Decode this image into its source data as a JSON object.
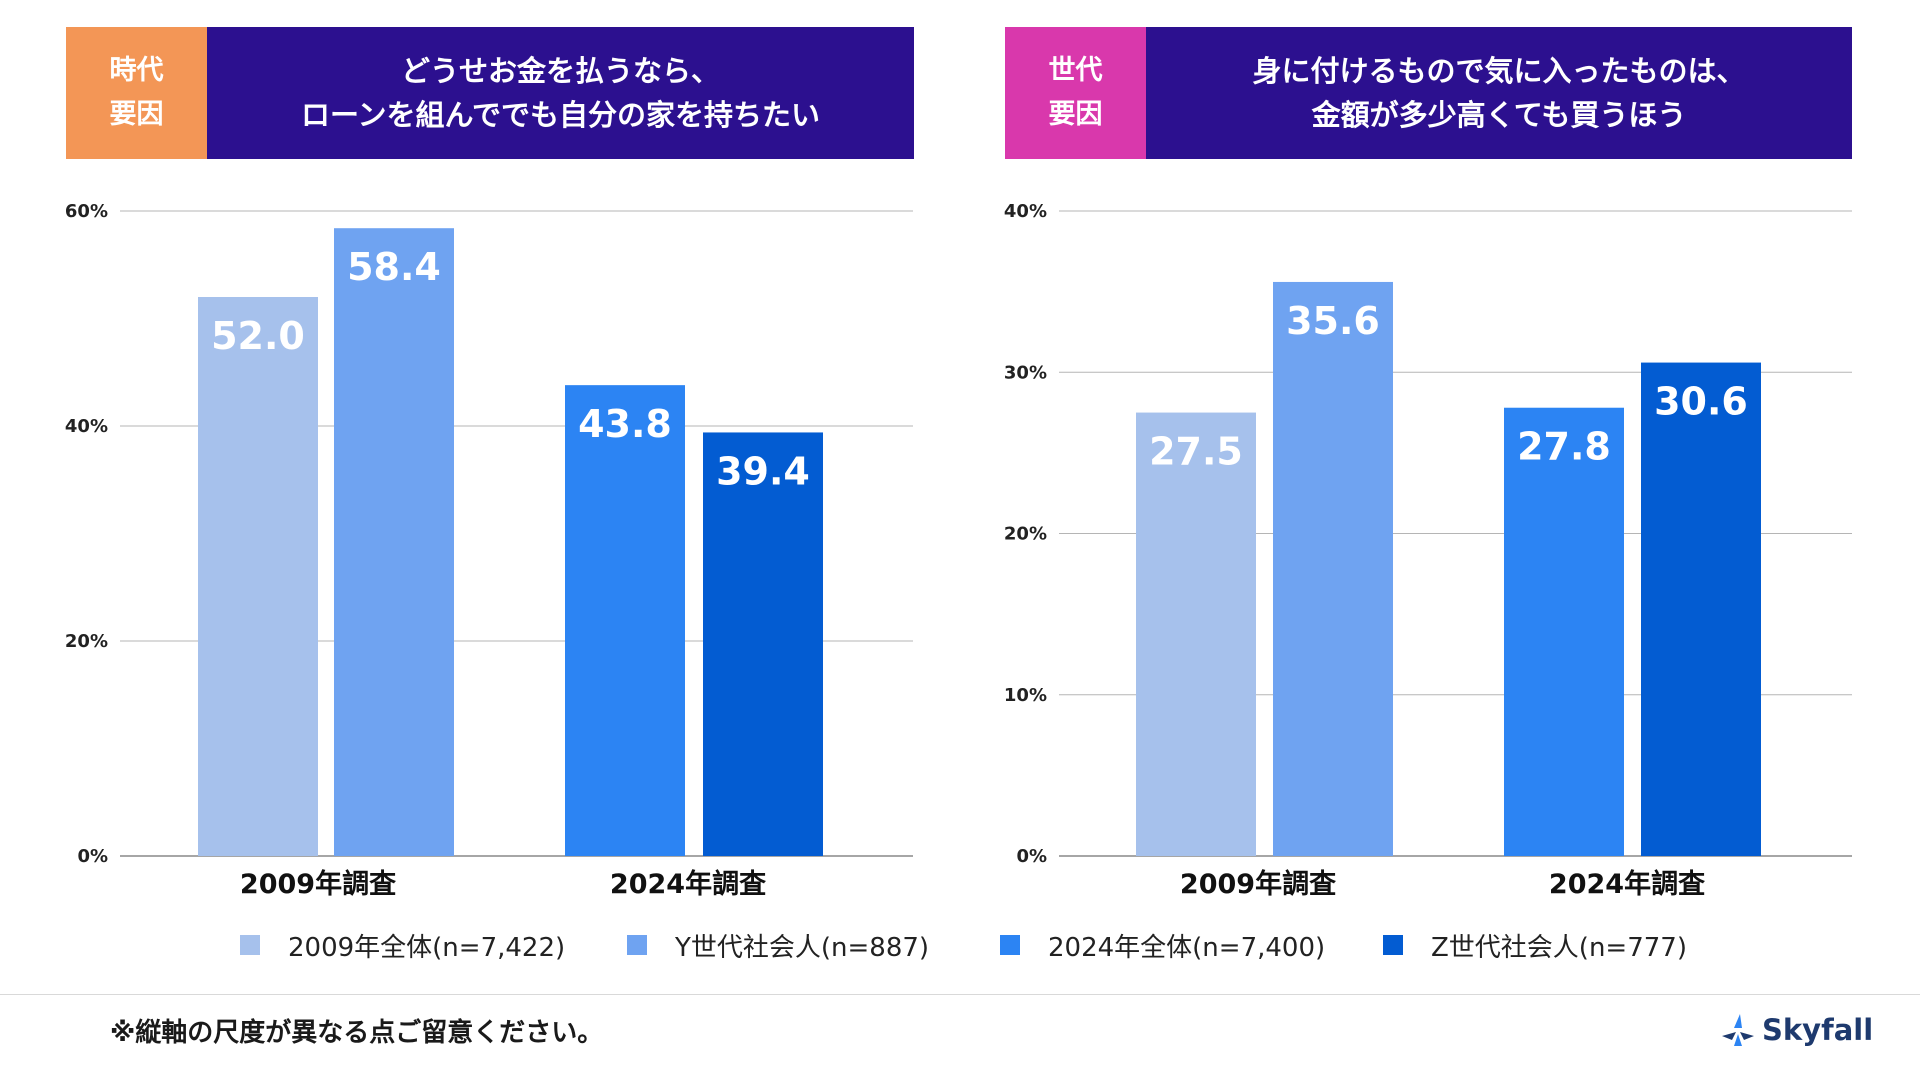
{
  "header_left": {
    "tag_lines": [
      "時代",
      "要因"
    ],
    "title_lines": [
      "どうせお金を払うなら、",
      "ローンを組んででも自分の家を持ちたい"
    ]
  },
  "header_right": {
    "tag_lines": [
      "世代",
      "要因"
    ],
    "title_lines": [
      "身に付けるもので気に入ったものは、",
      "金額が多少高くても買うほう"
    ]
  },
  "colors": {
    "header_bg": "#2c108f",
    "tag_left": "#f39656",
    "tag_right": "#d938ac",
    "series": [
      "#a6c1ec",
      "#6fa3f1",
      "#2c84f3",
      "#035cd2"
    ]
  },
  "chart_data": [
    {
      "type": "bar",
      "categories": [
        "2009年調査",
        "2024年調査"
      ],
      "series": [
        {
          "name": "2009年全体(n=7,422)",
          "values": [
            52.0,
            null
          ]
        },
        {
          "name": "Y世代社会人(n=887)",
          "values": [
            58.4,
            null
          ]
        },
        {
          "name": "2024年全体(n=7,400)",
          "values": [
            null,
            43.8
          ]
        },
        {
          "name": "Z世代社会人(n=777)",
          "values": [
            null,
            39.4
          ]
        }
      ],
      "ylim": [
        0,
        60
      ],
      "yticks": [
        "0%",
        "20%",
        "40%",
        "60%"
      ],
      "ytick_values": [
        0,
        20,
        40,
        60
      ],
      "grid": true,
      "title": "",
      "xlabel": "",
      "ylabel": ""
    },
    {
      "type": "bar",
      "categories": [
        "2009年調査",
        "2024年調査"
      ],
      "series": [
        {
          "name": "2009年全体(n=7,422)",
          "values": [
            27.5,
            null
          ]
        },
        {
          "name": "Y世代社会人(n=887)",
          "values": [
            35.6,
            null
          ]
        },
        {
          "name": "2024年全体(n=7,400)",
          "values": [
            null,
            27.8
          ]
        },
        {
          "name": "Z世代社会人(n=777)",
          "values": [
            null,
            30.6
          ]
        }
      ],
      "ylim": [
        0,
        40
      ],
      "yticks": [
        "0%",
        "10%",
        "20%",
        "30%",
        "40%"
      ],
      "ytick_values": [
        0,
        10,
        20,
        30,
        40
      ],
      "grid": true,
      "title": "",
      "xlabel": "",
      "ylabel": ""
    }
  ],
  "legend": {
    "placement": "bottom",
    "items": [
      "2009年全体(n=7,422)",
      "Y世代社会人(n=887)",
      "2024年全体(n=7,400)",
      "Z世代社会人(n=777)"
    ]
  },
  "footnote": "※縦軸の尺度が異なる点ご留意ください。",
  "logo": {
    "icon": "skyfall-logo-icon",
    "text": "Skyfall"
  }
}
